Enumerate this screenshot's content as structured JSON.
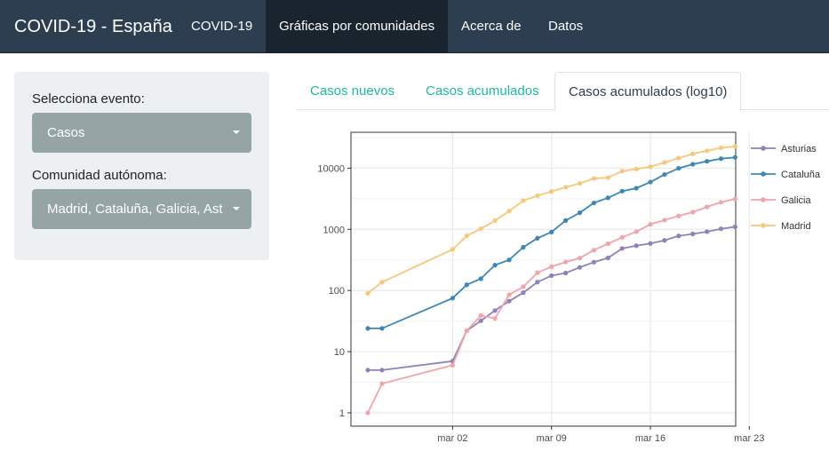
{
  "navbar": {
    "brand": "COVID-19 - España",
    "items": [
      {
        "label": "COVID-19"
      },
      {
        "label": "Gráficas por comunidades"
      },
      {
        "label": "Acerca de"
      },
      {
        "label": "Datos"
      }
    ]
  },
  "sidebar": {
    "event_label": "Selecciona evento:",
    "event_value": "Casos",
    "community_label": "Comunidad autónoma:",
    "community_value": "Madrid, Cataluña, Galicia, Ast"
  },
  "tabs": [
    {
      "label": "Casos nuevos"
    },
    {
      "label": "Casos acumulados"
    },
    {
      "label": "Casos acumulados (log10)"
    }
  ],
  "chart_data": {
    "type": "line",
    "y_scale": "log10",
    "xlabel": "",
    "ylabel": "",
    "x_ticks": [
      "mar 02",
      "mar 09",
      "mar 16",
      "mar 23"
    ],
    "y_ticks": [
      "1",
      "10",
      "100",
      "1000",
      "10000"
    ],
    "x": [
      "2020-02-25",
      "2020-02-26",
      "2020-03-02",
      "2020-03-03",
      "2020-03-04",
      "2020-03-05",
      "2020-03-06",
      "2020-03-07",
      "2020-03-08",
      "2020-03-09",
      "2020-03-10",
      "2020-03-11",
      "2020-03-12",
      "2020-03-13",
      "2020-03-14",
      "2020-03-15",
      "2020-03-16",
      "2020-03-17",
      "2020-03-18",
      "2020-03-19",
      "2020-03-20",
      "2020-03-21",
      "2020-03-22"
    ],
    "legend_position": "right",
    "series": [
      {
        "name": "Asturias",
        "color": "#8e83b8",
        "x": [
          "2020-02-25",
          "2020-02-26",
          "2020-03-02",
          "2020-03-03",
          "2020-03-04",
          "2020-03-05",
          "2020-03-06",
          "2020-03-07",
          "2020-03-08",
          "2020-03-09",
          "2020-03-10",
          "2020-03-11",
          "2020-03-12",
          "2020-03-13",
          "2020-03-14",
          "2020-03-15",
          "2020-03-16",
          "2020-03-17",
          "2020-03-18",
          "2020-03-19",
          "2020-03-20",
          "2020-03-21",
          "2020-03-22"
        ],
        "values": [
          5,
          5,
          7,
          22,
          32,
          47,
          67,
          92,
          137,
          175,
          193,
          239,
          290,
          341,
          487,
          540,
          587,
          660,
          780,
          840,
          915,
          1020,
          1100
        ]
      },
      {
        "name": "Cataluña",
        "color": "#3a87b8",
        "x": [
          "2020-02-25",
          "2020-02-26",
          "2020-03-02",
          "2020-03-03",
          "2020-03-04",
          "2020-03-05",
          "2020-03-06",
          "2020-03-07",
          "2020-03-08",
          "2020-03-09",
          "2020-03-10",
          "2020-03-11",
          "2020-03-12",
          "2020-03-13",
          "2020-03-14",
          "2020-03-15",
          "2020-03-16",
          "2020-03-17",
          "2020-03-18",
          "2020-03-19",
          "2020-03-20",
          "2020-03-21",
          "2020-03-22"
        ],
        "values": [
          24,
          24,
          75,
          124,
          156,
          260,
          316,
          509,
          715,
          903,
          1394,
          1866,
          2702,
          3270,
          4203,
          4704,
          5925,
          7864,
          9937,
          11592,
          12940,
          14263,
          15026
        ]
      },
      {
        "name": "Galicia",
        "color": "#f3a3ab",
        "x": [
          "2020-02-25",
          "2020-02-26",
          "2020-03-02",
          "2020-03-03",
          "2020-03-04",
          "2020-03-05",
          "2020-03-06",
          "2020-03-07",
          "2020-03-08",
          "2020-03-09",
          "2020-03-10",
          "2020-03-11",
          "2020-03-12",
          "2020-03-13",
          "2020-03-14",
          "2020-03-15",
          "2020-03-16",
          "2020-03-17",
          "2020-03-18",
          "2020-03-19",
          "2020-03-20",
          "2020-03-21",
          "2020-03-22"
        ],
        "values": [
          1,
          3,
          6,
          22,
          39,
          35,
          85,
          115,
          195,
          245,
          292,
          339,
          457,
          582,
          739,
          915,
          1208,
          1415,
          1653,
          1914,
          2322,
          2772,
          3139
        ]
      },
      {
        "name": "Madrid",
        "color": "#f8c77a",
        "x": [
          "2020-02-25",
          "2020-02-26",
          "2020-03-02",
          "2020-03-03",
          "2020-03-04",
          "2020-03-05",
          "2020-03-06",
          "2020-03-07",
          "2020-03-08",
          "2020-03-09",
          "2020-03-10",
          "2020-03-11",
          "2020-03-12",
          "2020-03-13",
          "2020-03-14",
          "2020-03-15",
          "2020-03-16",
          "2020-03-17",
          "2020-03-18",
          "2020-03-19",
          "2020-03-20",
          "2020-03-21",
          "2020-03-22"
        ],
        "values": [
          90,
          137,
          469,
          782,
          1024,
          1388,
          1990,
          2940,
          3544,
          4165,
          4871,
          5637,
          6777,
          7007,
          8921,
          9702,
          10575,
          12352,
          14597,
          17166,
          19243,
          21520,
          22677
        ]
      }
    ]
  }
}
